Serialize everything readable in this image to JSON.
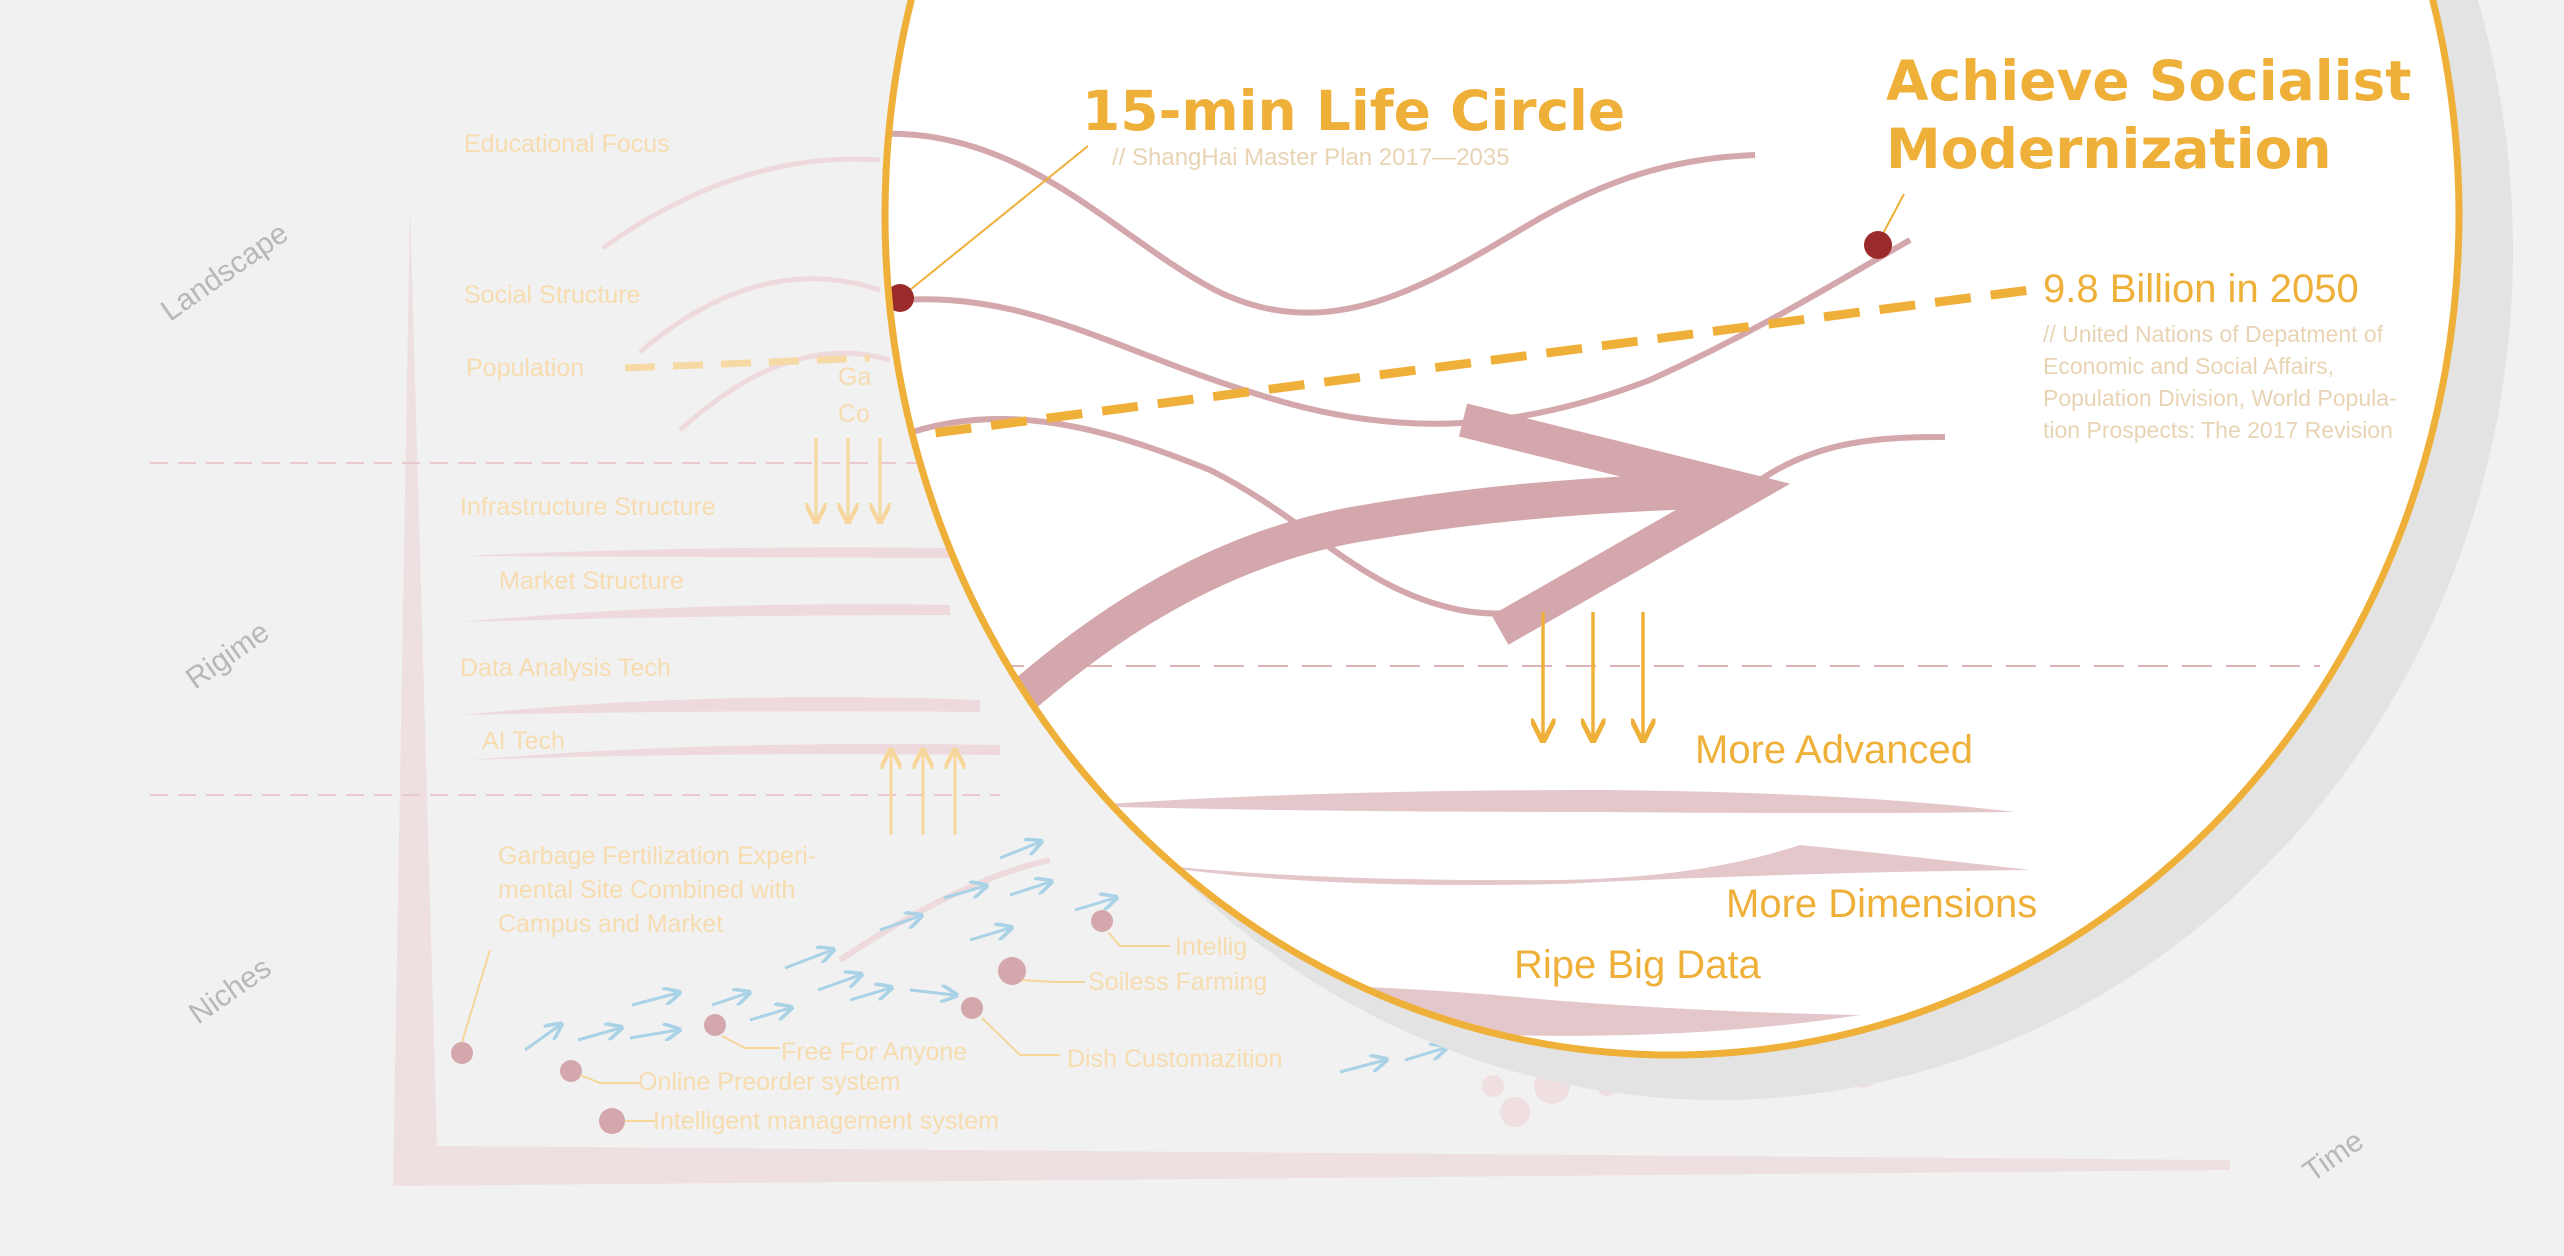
{
  "zones": {
    "landscape": "Landscape",
    "regime": "Rigime",
    "niches": "Niches",
    "time": "Time"
  },
  "background": {
    "landscape_labels": [
      "Educational Focus",
      "Social Structure",
      "Population"
    ],
    "regime_labels": [
      "Infrastructure Structure",
      "Market Structure",
      "Data Analysis Tech",
      "AI Tech"
    ],
    "partial_label": [
      "Ga",
      "Co"
    ],
    "niche_project": [
      "Garbage Fertilization Experi-",
      "mental Site Combined with",
      "Campus and Market"
    ],
    "niche_items": {
      "free": "Free For Anyone",
      "preorder": "Online Preorder system",
      "management": "Intelligent management system",
      "soilless": "Soiless Farming",
      "dish": "Dish Customazition",
      "intellig": "Intellig"
    }
  },
  "lens": {
    "life_circle": {
      "title": "15-min Life Circle",
      "source": "// ShangHai Master Plan 2017—2035"
    },
    "socialist": {
      "line1": "Achieve Socialist",
      "line2": "Modernization"
    },
    "population": {
      "headline": "9.8 Billion in 2050",
      "source_lines": [
        "// United Nations of Depatment of",
        "Economic and Social Affairs,",
        "Population Division, World Popula-",
        "tion Prospects: The 2017 Revision"
      ]
    },
    "more_advanced": "More Advanced",
    "more_dimensions": "More Dimensions",
    "ripe_big_data": "Ripe Big Data"
  },
  "colors": {
    "background": "#f1f1f1",
    "accent_orange": "#efb03a",
    "trend_pink": "#d3a7ab",
    "marker_red": "#9b2a2a",
    "arrow_blue": "#a9d2e6",
    "faint_pink": "#e8c9cc",
    "lens_shadow": "#e3e3e3"
  }
}
